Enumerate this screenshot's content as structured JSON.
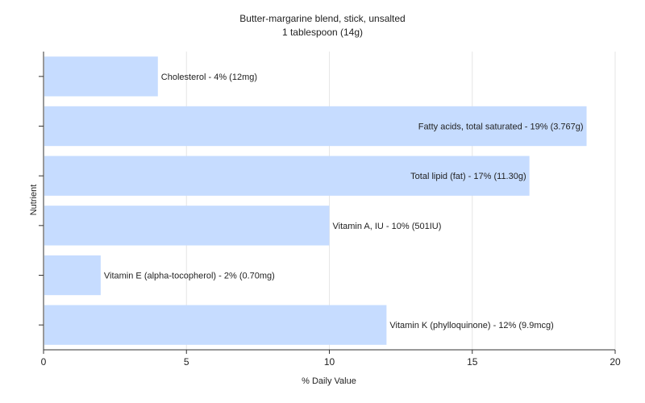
{
  "chart_data": {
    "type": "bar",
    "orientation": "horizontal",
    "title": "Butter-margarine blend, stick, unsalted",
    "subtitle": "1 tablespoon (14g)",
    "xlabel": "% Daily Value",
    "ylabel": "Nutrient",
    "xlim": [
      0,
      20
    ],
    "xticks": [
      "0",
      "5",
      "10",
      "15",
      "20"
    ],
    "grid": true,
    "bar_color": "#c6dcff",
    "bars": [
      {
        "label": "Cholesterol - 4% (12mg)",
        "value": 4
      },
      {
        "label": "Fatty acids, total saturated - 19% (3.767g)",
        "value": 19
      },
      {
        "label": "Total lipid (fat) - 17% (11.30g)",
        "value": 17
      },
      {
        "label": "Vitamin A, IU - 10% (501IU)",
        "value": 10
      },
      {
        "label": "Vitamin E (alpha-tocopherol) - 2% (0.70mg)",
        "value": 2
      },
      {
        "label": "Vitamin K (phylloquinone) - 12% (9.9mcg)",
        "value": 12
      }
    ]
  }
}
